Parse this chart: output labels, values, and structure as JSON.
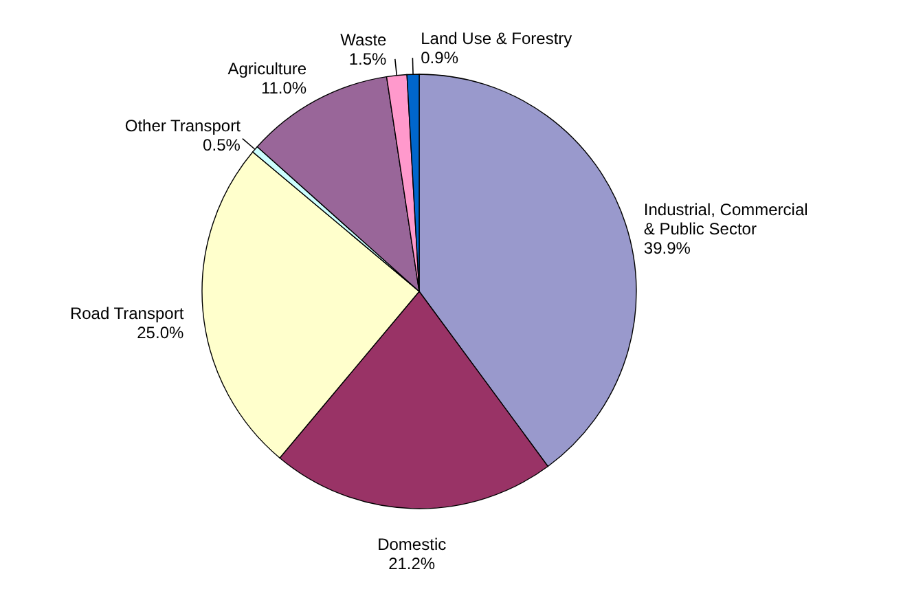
{
  "chart_data": {
    "type": "pie",
    "categories": [
      "Industrial, Commercial & Public Sector",
      "Domestic",
      "Road Transport",
      "Other Transport",
      "Agriculture",
      "Waste",
      "Land Use & Forestry"
    ],
    "values": [
      39.9,
      21.2,
      25.0,
      0.5,
      11.0,
      1.5,
      0.9
    ],
    "value_labels": [
      "39.9%",
      "21.2%",
      "25.0%",
      "0.5%",
      "11.0%",
      "1.5%",
      "0.9%"
    ],
    "colors": [
      "#9999cc",
      "#993366",
      "#ffffcc",
      "#ccffff",
      "#996699",
      "#ff99cc",
      "#0066cc"
    ]
  }
}
